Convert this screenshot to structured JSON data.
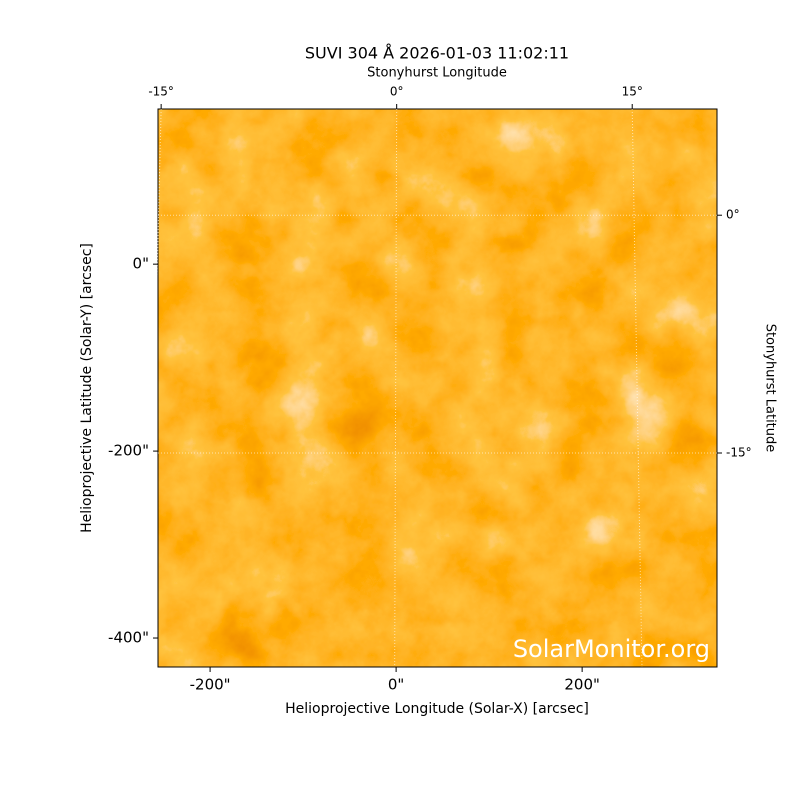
{
  "chart_data": {
    "type": "image",
    "title": "SUVI 304 Å 2026-01-03 11:02:11",
    "xlabel": "Helioprojective Longitude (Solar-X) [arcsec]",
    "ylabel": "Helioprojective Latitude (Solar-Y) [arcsec]",
    "x2label": "Stonyhurst Longitude",
    "y2label": "Stonyhurst Latitude",
    "watermark": "SolarMonitor.org",
    "xlim": [
      -256,
      345
    ],
    "ylim": [
      -431,
      166
    ],
    "xticks": [
      {
        "value": -200,
        "label": "-200\""
      },
      {
        "value": 0,
        "label": "0\""
      },
      {
        "value": 200,
        "label": "200\""
      }
    ],
    "yticks": [
      {
        "value": -400,
        "label": "-400\""
      },
      {
        "value": -200,
        "label": "-200\""
      },
      {
        "value": 0,
        "label": "0\""
      }
    ],
    "x2lim": [
      -15.2,
      20.4
    ],
    "y2lim": [
      -28.5,
      6.7
    ],
    "x2ticks": [
      {
        "value": -15,
        "label": "-15°"
      },
      {
        "value": 0,
        "label": "0°"
      },
      {
        "value": 15,
        "label": "15°"
      }
    ],
    "y2ticks": [
      {
        "value": -15,
        "label": "-15°"
      },
      {
        "value": 0,
        "label": "0°"
      }
    ],
    "grid": true
  }
}
